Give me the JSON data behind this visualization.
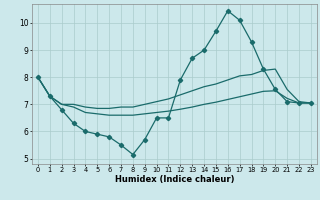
{
  "xlabel": "Humidex (Indice chaleur)",
  "bg_color": "#cce8eb",
  "grid_color": "#aacccc",
  "line_color": "#1a6b6b",
  "xlim": [
    -0.5,
    23.5
  ],
  "ylim": [
    4.8,
    10.7
  ],
  "yticks": [
    5,
    6,
    7,
    8,
    9,
    10
  ],
  "xticks": [
    0,
    1,
    2,
    3,
    4,
    5,
    6,
    7,
    8,
    9,
    10,
    11,
    12,
    13,
    14,
    15,
    16,
    17,
    18,
    19,
    20,
    21,
    22,
    23
  ],
  "series1_x": [
    0,
    1,
    2,
    3,
    4,
    5,
    6,
    7,
    8,
    9,
    10,
    11,
    12,
    13,
    14,
    15,
    16,
    17,
    18,
    19,
    20,
    21,
    22,
    23
  ],
  "series1_y": [
    8.0,
    7.3,
    6.8,
    6.3,
    6.0,
    5.9,
    5.8,
    5.5,
    5.15,
    5.7,
    6.5,
    6.5,
    7.9,
    8.7,
    9.0,
    9.7,
    10.45,
    10.1,
    9.3,
    8.3,
    7.55,
    7.1,
    7.05,
    7.05
  ],
  "series2_x": [
    0,
    1,
    2,
    3,
    4,
    5,
    6,
    7,
    8,
    9,
    10,
    11,
    12,
    13,
    14,
    15,
    16,
    17,
    18,
    19,
    20,
    21,
    22,
    23
  ],
  "series2_y": [
    8.0,
    7.3,
    7.0,
    7.0,
    6.9,
    6.85,
    6.85,
    6.9,
    6.9,
    7.0,
    7.1,
    7.2,
    7.35,
    7.5,
    7.65,
    7.75,
    7.9,
    8.05,
    8.1,
    8.25,
    8.3,
    7.55,
    7.1,
    7.05
  ],
  "series3_x": [
    0,
    1,
    2,
    3,
    4,
    5,
    6,
    7,
    8,
    9,
    10,
    11,
    12,
    13,
    14,
    15,
    16,
    17,
    18,
    19,
    20,
    21,
    22,
    23
  ],
  "series3_y": [
    8.0,
    7.3,
    7.0,
    6.9,
    6.7,
    6.65,
    6.6,
    6.6,
    6.6,
    6.65,
    6.7,
    6.75,
    6.82,
    6.9,
    7.0,
    7.08,
    7.18,
    7.28,
    7.38,
    7.48,
    7.5,
    7.22,
    7.05,
    7.05
  ],
  "markersize": 2.2,
  "linewidth": 0.9
}
